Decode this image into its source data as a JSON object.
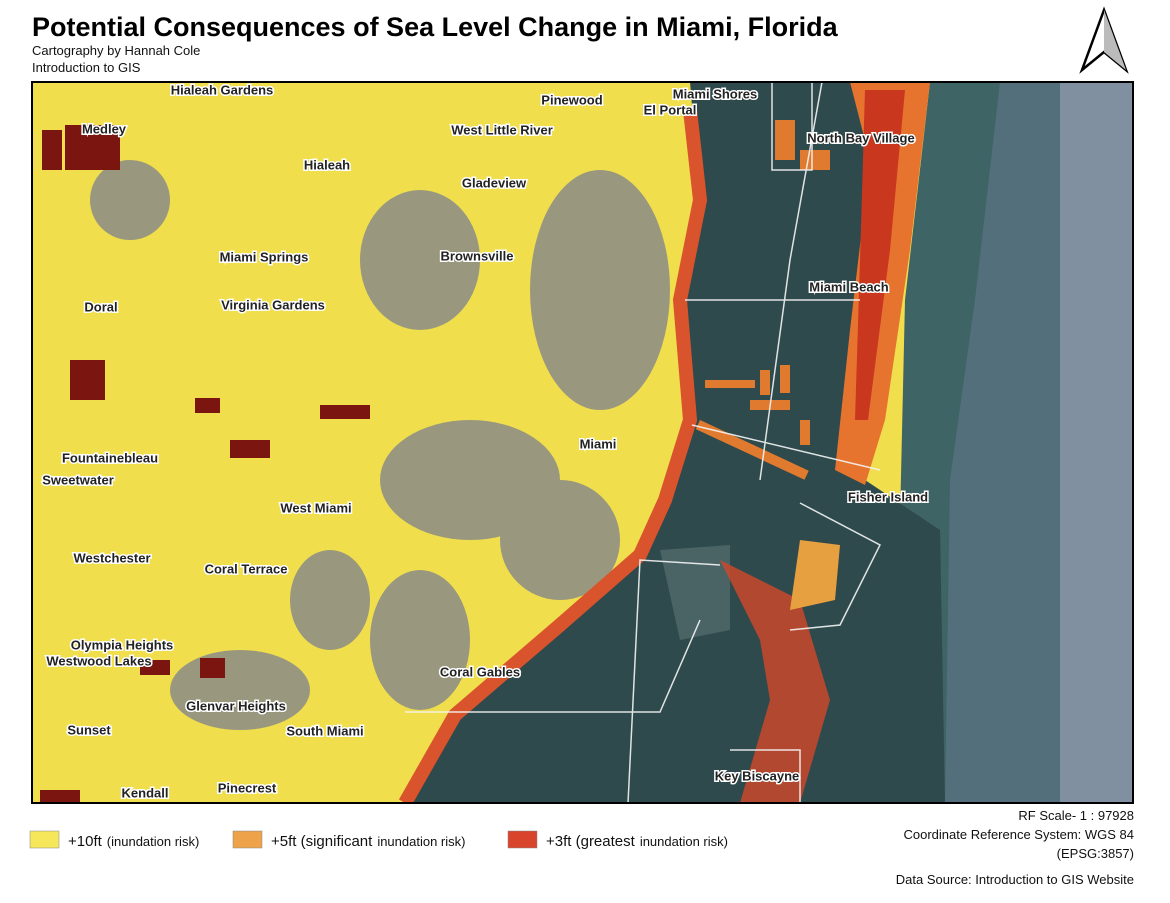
{
  "header": {
    "title": "Potential Consequences of Sea Level Change in Miami,  Florida",
    "credit": "Cartography by Hannah Cole",
    "course": "Introduction to GIS"
  },
  "map": {
    "places": [
      "Hialeah Gardens",
      "Medley",
      "Hialeah",
      "Pinewood",
      "Miami Shores",
      "El Portal",
      "West Little River",
      "North Bay Village",
      "Gladeview",
      "Miami Springs",
      "Brownsville",
      "Miami Beach",
      "Doral",
      "Virginia Gardens",
      "Miami",
      "Fountainebleau",
      "Sweetwater",
      "Fisher Island",
      "West Miami",
      "Westchester",
      "Coral Terrace",
      "Olympia Heights",
      "Westwood Lakes",
      "Coral Gables",
      "Glenvar Heights",
      "Sunset",
      "South Miami",
      "Key Biscayne",
      "Pinecrest",
      "Kendall"
    ]
  },
  "legend": [
    {
      "label": "+10ft",
      "note": "(inundation risk)",
      "color": "#f5e65a"
    },
    {
      "label": "+5ft (significant",
      "note": "inundation risk)",
      "color": "#eea24a"
    },
    {
      "label": "+3ft (greatest",
      "note": "inundation risk)",
      "color": "#d9442c"
    }
  ],
  "footer": {
    "scale": "RF Scale- 1 : 97928",
    "crs": "Coordinate Reference System: WGS 84",
    "epsg": "(EPSG:3857)",
    "source": "Data Source: Introduction to GIS Website"
  }
}
